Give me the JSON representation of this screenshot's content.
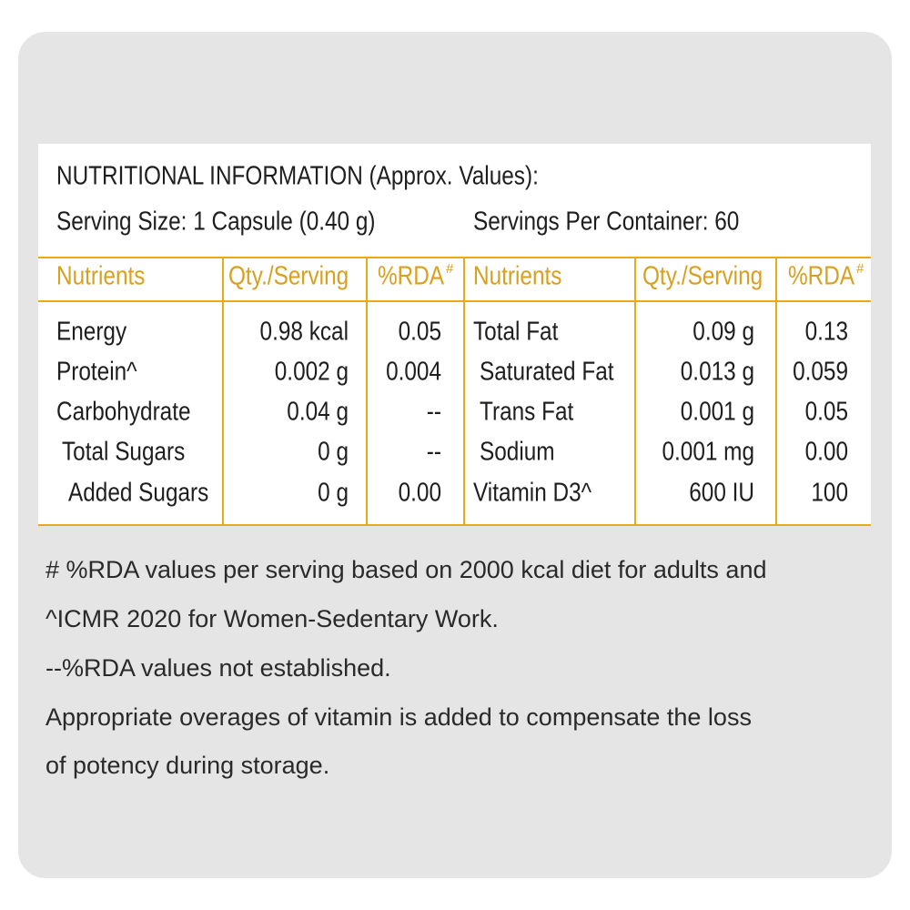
{
  "header": {
    "title": "NUTRITIONAL INFORMATION (Approx. Values):",
    "serving_size": "Serving Size: 1 Capsule (0.40 g)",
    "servings_per_container": "Servings Per Container: 60"
  },
  "table": {
    "columns": [
      {
        "text": "Nutrients"
      },
      {
        "text": "Qty./Serving"
      },
      {
        "text": "%RDA",
        "sup": "#"
      },
      {
        "text": "Nutrients"
      },
      {
        "text": "Qty./Serving"
      },
      {
        "text": "%RDA",
        "sup": "#"
      }
    ],
    "rows": [
      [
        "Energy",
        "0.98 kcal",
        "0.05",
        "Total Fat",
        "0.09 g",
        "0.13"
      ],
      [
        "Protein^",
        "0.002 g",
        "0.004",
        "Saturated Fat",
        "0.013 g",
        "0.059"
      ],
      [
        "Carbohydrate",
        "0.04 g",
        "--",
        "Trans Fat",
        "0.001 g",
        "0.05"
      ],
      [
        "Total Sugars",
        "0 g",
        "--",
        "Sodium",
        "0.001 mg",
        "0.00"
      ],
      [
        "Added Sugars",
        "0 g",
        "0.00",
        "Vitamin D3^",
        "600 IU",
        "100"
      ]
    ]
  },
  "footnotes": [
    "# %RDA values per serving based on 2000 kcal diet for adults and",
    "^ICMR 2020 for Women-Sedentary Work.",
    "--%RDA values not established.",
    "Appropriate overages of vitamin is added to compensate the loss",
    "of potency during storage."
  ]
}
